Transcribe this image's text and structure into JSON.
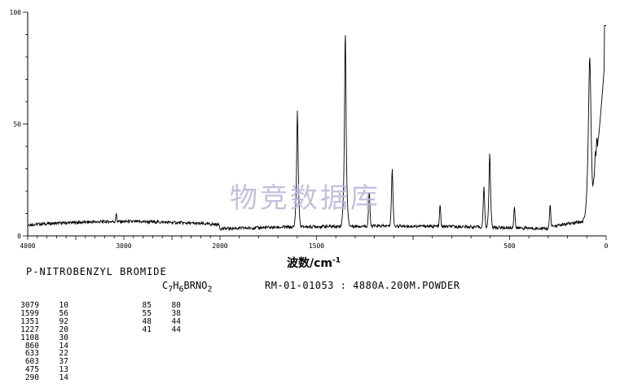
{
  "chart_data": {
    "type": "line",
    "title": "",
    "xlabel_main": "波数/cm",
    "xlabel_sup": "-1",
    "ylabel": "",
    "xlim": [
      4000,
      0
    ],
    "ylim": [
      0,
      100
    ],
    "x_ticks": [
      4000,
      3000,
      2000,
      1500,
      500,
      0
    ],
    "y_ticks": [
      0,
      50,
      100
    ],
    "x_tick_labels": [
      "4000",
      "3000",
      "2000",
      "1500",
      "500",
      "0"
    ],
    "y_tick_labels": [
      "0",
      "50",
      "100"
    ],
    "peaks": [
      {
        "x": 3079,
        "y": 10
      },
      {
        "x": 1599,
        "y": 56
      },
      {
        "x": 1351,
        "y": 92
      },
      {
        "x": 1227,
        "y": 20
      },
      {
        "x": 1108,
        "y": 30
      },
      {
        "x": 860,
        "y": 14
      },
      {
        "x": 633,
        "y": 22
      },
      {
        "x": 603,
        "y": 37
      },
      {
        "x": 475,
        "y": 13
      },
      {
        "x": 290,
        "y": 14
      },
      {
        "x": 85,
        "y": 80
      },
      {
        "x": 55,
        "y": 38
      },
      {
        "x": 48,
        "y": 44
      },
      {
        "x": 41,
        "y": 44
      }
    ]
  },
  "watermark": "物竞数据库",
  "compound_name": "P-NITROBENZYL BROMIDE",
  "formula": {
    "p1": "C",
    "s1": "7",
    "p2": "H",
    "s2": "6",
    "p3": "BRNO",
    "s3": "2"
  },
  "meta": "RM-01-01053 : 4880A.200M.POWDER",
  "peak_table_left": [
    [
      "3079",
      "10"
    ],
    [
      "1599",
      "56"
    ],
    [
      "1351",
      "92"
    ],
    [
      "1227",
      "20"
    ],
    [
      "1108",
      "30"
    ],
    [
      "860",
      "14"
    ],
    [
      "633",
      "22"
    ],
    [
      "603",
      "37"
    ],
    [
      "475",
      "13"
    ],
    [
      "290",
      "14"
    ]
  ],
  "peak_table_right": [
    [
      "85",
      "80"
    ],
    [
      "55",
      "38"
    ],
    [
      "48",
      "44"
    ],
    [
      "41",
      "44"
    ]
  ]
}
